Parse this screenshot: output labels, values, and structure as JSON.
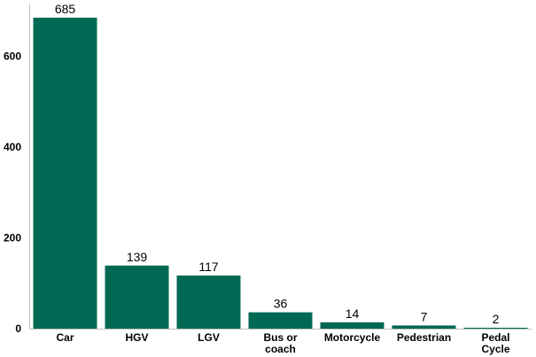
{
  "chart_data": {
    "type": "bar",
    "categories": [
      [
        "Car"
      ],
      [
        "HGV"
      ],
      [
        "LGV"
      ],
      [
        "Bus or",
        "coach"
      ],
      [
        "Motorcycle"
      ],
      [
        "Pedestrian"
      ],
      [
        "Pedal",
        "Cycle"
      ]
    ],
    "values": [
      685,
      139,
      117,
      36,
      14,
      7,
      2
    ],
    "data_labels": [
      "685",
      "139",
      "117",
      "36",
      "14",
      "7",
      "2"
    ],
    "ylim": [
      0,
      700
    ],
    "yticks": [
      0,
      200,
      400,
      600
    ],
    "ytick_labels": [
      "0",
      "200",
      "400",
      "600"
    ],
    "bar_color": "#006953",
    "axis_color": "#bfbfbf",
    "grid": false,
    "legend": "none"
  }
}
